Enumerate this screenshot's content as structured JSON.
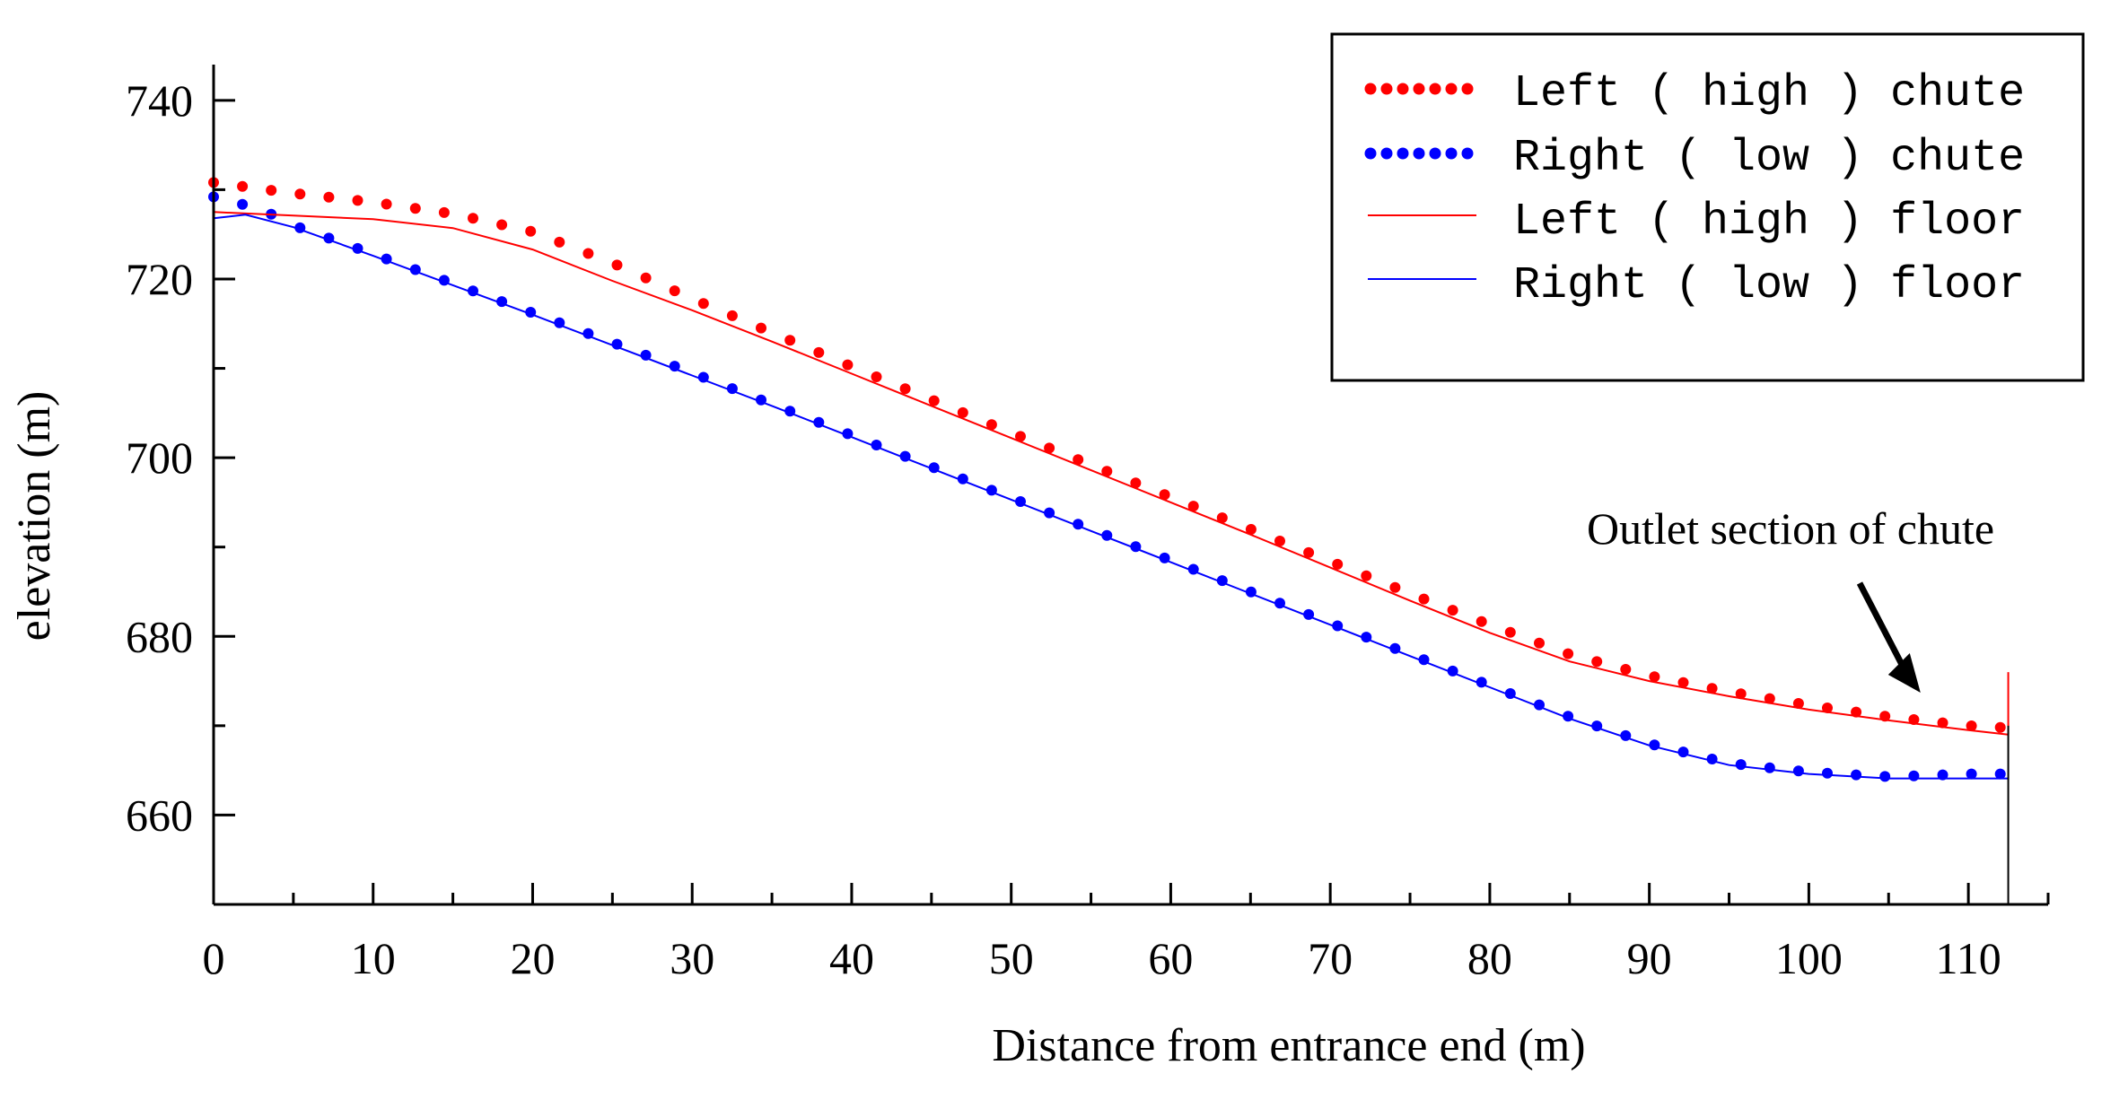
{
  "chart_data": {
    "type": "line",
    "title": "",
    "xlabel": "Distance from entrance end (m)",
    "ylabel": "elevation (m)",
    "xlim": [
      0,
      115
    ],
    "ylim": [
      650,
      744
    ],
    "x_ticks": [
      0,
      10,
      20,
      30,
      40,
      50,
      60,
      70,
      80,
      90,
      100,
      110
    ],
    "y_ticks": [
      660,
      680,
      700,
      720,
      740
    ],
    "legend_position": "top-right",
    "colors": {
      "left": "#ff0000",
      "right": "#0000ff",
      "axis": "#000000"
    },
    "series": [
      {
        "name": "Left ( high ) chute",
        "style": "dots",
        "color": "#ff0000",
        "points": [
          [
            0,
            730.8
          ],
          [
            5,
            729.6
          ],
          [
            10,
            728.6
          ],
          [
            15,
            727.3
          ],
          [
            20,
            725.3
          ],
          [
            25,
            721.8
          ],
          [
            30,
            717.8
          ],
          [
            35,
            714.0
          ],
          [
            40,
            710.2
          ],
          [
            45,
            706.5
          ],
          [
            50,
            702.8
          ],
          [
            55,
            699.2
          ],
          [
            60,
            695.6
          ],
          [
            65,
            692.0
          ],
          [
            70,
            688.4
          ],
          [
            75,
            684.8
          ],
          [
            80,
            681.3
          ],
          [
            85,
            678.0
          ],
          [
            90,
            675.6
          ],
          [
            95,
            673.8
          ],
          [
            100,
            672.3
          ],
          [
            105,
            671.0
          ],
          [
            110,
            670.0
          ],
          [
            112,
            669.8
          ]
        ]
      },
      {
        "name": "Right ( low ) chute",
        "style": "dots",
        "color": "#0000ff",
        "points": [
          [
            0,
            729.2
          ],
          [
            3,
            727.8
          ],
          [
            5,
            726.0
          ],
          [
            10,
            722.8
          ],
          [
            15,
            719.5
          ],
          [
            20,
            716.2
          ],
          [
            25,
            712.9
          ],
          [
            30,
            709.5
          ],
          [
            35,
            706.0
          ],
          [
            40,
            702.5
          ],
          [
            45,
            699.0
          ],
          [
            50,
            695.5
          ],
          [
            55,
            692.0
          ],
          [
            60,
            688.5
          ],
          [
            65,
            685.0
          ],
          [
            70,
            681.5
          ],
          [
            75,
            678.0
          ],
          [
            80,
            674.5
          ],
          [
            85,
            671.0
          ],
          [
            90,
            668.0
          ],
          [
            95,
            665.8
          ],
          [
            100,
            664.8
          ],
          [
            105,
            664.3
          ],
          [
            110,
            664.6
          ],
          [
            112,
            664.6
          ]
        ]
      },
      {
        "name": "Left ( high ) floor",
        "style": "line",
        "color": "#ff0000",
        "points": [
          [
            0,
            727.5
          ],
          [
            5,
            727.1
          ],
          [
            10,
            726.7
          ],
          [
            15,
            725.7
          ],
          [
            20,
            723.3
          ],
          [
            25,
            719.8
          ],
          [
            30,
            716.5
          ],
          [
            35,
            713.0
          ],
          [
            40,
            709.4
          ],
          [
            45,
            705.8
          ],
          [
            50,
            702.2
          ],
          [
            55,
            698.6
          ],
          [
            60,
            695.0
          ],
          [
            65,
            691.4
          ],
          [
            70,
            687.7
          ],
          [
            75,
            684.0
          ],
          [
            80,
            680.4
          ],
          [
            85,
            677.2
          ],
          [
            90,
            675.0
          ],
          [
            95,
            673.3
          ],
          [
            100,
            671.8
          ],
          [
            105,
            670.6
          ],
          [
            110,
            669.5
          ],
          [
            112.5,
            669.0
          ]
        ]
      },
      {
        "name": "Right ( low ) floor",
        "style": "line",
        "color": "#0000ff",
        "points": [
          [
            0,
            726.8
          ],
          [
            2,
            727.2
          ],
          [
            5,
            725.8
          ],
          [
            10,
            722.6
          ],
          [
            15,
            719.3
          ],
          [
            20,
            716.0
          ],
          [
            25,
            712.6
          ],
          [
            30,
            709.2
          ],
          [
            35,
            705.8
          ],
          [
            40,
            702.3
          ],
          [
            45,
            698.8
          ],
          [
            50,
            695.3
          ],
          [
            55,
            691.8
          ],
          [
            60,
            688.3
          ],
          [
            65,
            684.8
          ],
          [
            70,
            681.3
          ],
          [
            75,
            677.8
          ],
          [
            80,
            674.3
          ],
          [
            85,
            670.8
          ],
          [
            90,
            667.8
          ],
          [
            95,
            665.6
          ],
          [
            100,
            664.6
          ],
          [
            105,
            664.1
          ],
          [
            110,
            664.1
          ],
          [
            112.5,
            664.1
          ]
        ]
      }
    ],
    "annotation": {
      "text": "Outlet section of chute",
      "target_x": 107,
      "target_y": 672.3
    }
  }
}
